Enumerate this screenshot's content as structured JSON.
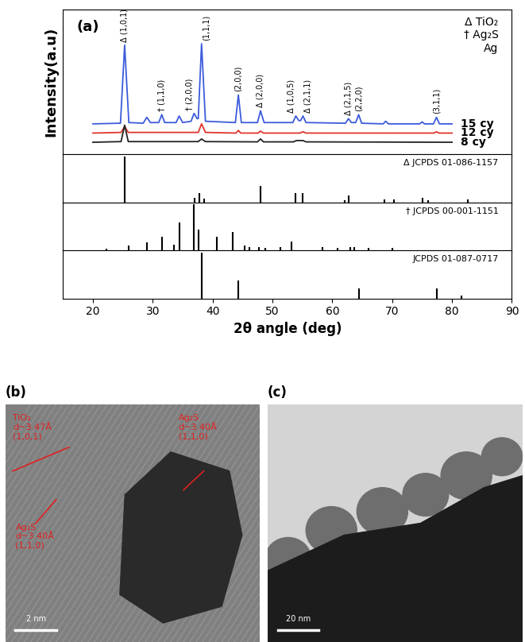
{
  "chart_data": {
    "type": "line",
    "panel_label": "(a)",
    "x_label": "2θ angle (deg)",
    "y_label": "Intensity(a.u)",
    "xlim": [
      15,
      90
    ],
    "xticks": [
      20,
      30,
      40,
      50,
      60,
      70,
      80,
      90
    ],
    "ylim": [
      0,
      110
    ],
    "tick_labels": "x",
    "phase_key": [
      "Δ TiO₂",
      "† Ag₂S",
      "Ag"
    ],
    "series": [
      {
        "name": "15 cy",
        "color": "#3b5bdb",
        "x": [
          20,
          24.6,
          25.3,
          26.0,
          28.4,
          29.0,
          29.6,
          31.0,
          31.5,
          32.0,
          33.9,
          34.4,
          35.0,
          36.4,
          36.9,
          37.4,
          37.6,
          38.15,
          38.8,
          43.8,
          44.3,
          44.8,
          47.5,
          48.0,
          48.6,
          53.4,
          53.9,
          54.4,
          54.7,
          55.1,
          55.6,
          62.2,
          62.7,
          63.2,
          63.9,
          64.4,
          64.9,
          68.5,
          68.9,
          69.4,
          74.6,
          75.0,
          75.4,
          76.9,
          77.4,
          77.9,
          80
        ],
        "values": [
          23,
          23.5,
          83,
          24,
          23.5,
          28,
          24,
          24,
          30,
          24,
          24,
          29,
          24,
          25,
          31,
          27,
          27,
          84,
          25,
          24,
          45,
          24,
          24,
          33,
          24,
          24,
          29,
          25.5,
          25.5,
          29,
          24,
          23.5,
          27,
          24,
          24,
          30,
          23.5,
          23,
          25,
          23,
          23,
          24.5,
          23,
          23,
          28,
          23,
          23
        ]
      },
      {
        "name": "12 cy",
        "color": "#e0342c",
        "x": [
          20,
          24.7,
          25.3,
          25.9,
          37.6,
          38.15,
          38.8,
          43.9,
          44.3,
          44.7,
          47.6,
          48.0,
          48.5,
          54.6,
          55.1,
          55.6,
          77.0,
          77.4,
          77.8,
          80
        ],
        "values": [
          16,
          16.5,
          21,
          16.5,
          16.5,
          23,
          16.5,
          16,
          18,
          16,
          16,
          17.5,
          16,
          16,
          17,
          16,
          16,
          17,
          16,
          16
        ]
      },
      {
        "name": "8 cy",
        "color": "#222222",
        "x": [
          20,
          24.7,
          25.3,
          25.9,
          37.6,
          38.15,
          38.8,
          47.5,
          48.0,
          48.5,
          53.5,
          54.0,
          55.1,
          55.6,
          80
        ],
        "values": [
          9,
          9.5,
          22,
          9.5,
          9.5,
          11.5,
          9.5,
          9.3,
          11.5,
          9.3,
          9.3,
          10.3,
          10.3,
          9.3,
          9
        ]
      }
    ],
    "peak_labels": [
      {
        "text": "Δ (1,0,1)",
        "x": 25.3,
        "y": 83
      },
      {
        "text": "† (1,1,0)",
        "x": 31.5,
        "y": 30
      },
      {
        "text": "† (2,0,0)",
        "x": 36.9,
        "y": 31
      },
      {
        "text": "(1,1,1)",
        "x": 38.15,
        "y": 84
      },
      {
        "text": "(2,0,0)",
        "x": 44.3,
        "y": 45
      },
      {
        "text": "Δ (2,0,0)",
        "x": 48.0,
        "y": 33
      },
      {
        "text": "Δ (1,0,5)",
        "x": 53.9,
        "y": 29
      },
      {
        "text": "Δ (2,1,1)",
        "x": 55.1,
        "y": 29
      },
      {
        "text": "Δ (2,1,5)",
        "x": 62.7,
        "y": 27
      },
      {
        "text": "(2,2,0)",
        "x": 64.4,
        "y": 30
      },
      {
        "text": "(3,1,1)",
        "x": 77.4,
        "y": 28
      }
    ],
    "references": [
      {
        "name": "Δ JCPDS 01-086-1157",
        "ylim": [
          0,
          105
        ],
        "x": [
          25.28,
          36.95,
          37.8,
          38.58,
          48.05,
          53.89,
          55.06,
          62.12,
          62.69,
          68.76,
          70.31,
          75.03,
          76.02,
          82.66
        ],
        "values": [
          100,
          10,
          20,
          7,
          35,
          20,
          20,
          4,
          14,
          6,
          6,
          10,
          4,
          6
        ]
      },
      {
        "name": "† JCPDS 00-001-1151",
        "ylim": [
          0,
          105
        ],
        "x": [
          22.3,
          26.0,
          29.0,
          31.5,
          33.6,
          34.4,
          36.8,
          37.7,
          40.7,
          43.4,
          45.4,
          46.2,
          47.7,
          48.8,
          51.3,
          53.2,
          58.3,
          60.9,
          63.0,
          63.6,
          66.0,
          70.0
        ],
        "values": [
          3,
          10,
          18,
          30,
          12,
          60,
          100,
          45,
          30,
          40,
          10,
          8,
          8,
          6,
          8,
          20,
          8,
          6,
          8,
          8,
          6,
          6
        ]
      },
      {
        "name": "JCPDS 01-087-0717",
        "ylim": [
          0,
          105
        ],
        "x": [
          38.12,
          44.3,
          64.44,
          77.4,
          81.54
        ],
        "values": [
          100,
          40,
          22,
          22,
          6
        ]
      }
    ]
  },
  "images": [
    {
      "panel_label": "(b)",
      "scale_bar": "2 nm",
      "annotations": [
        "TiO₂\nd~3.47Å\n(1,0,1)",
        "Ag₂S\nd~3.40Å\n(1,1,0)",
        "Ag₂S\nd~3.40Å\n(1,1,0)"
      ]
    },
    {
      "panel_label": "(c)",
      "scale_bar": "20 nm"
    }
  ]
}
